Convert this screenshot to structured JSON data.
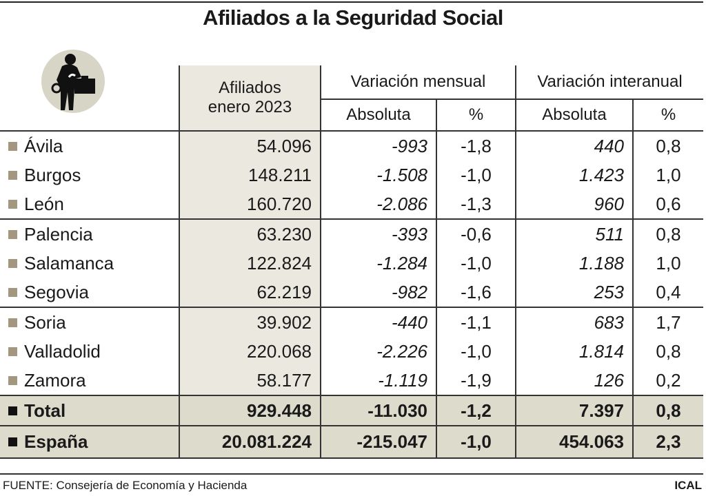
{
  "title": "Afiliados a la Seguridad Social",
  "icon": "worker-with-toolbox-icon",
  "colors": {
    "column_bg": "#ebe8df",
    "total_bg": "#dddbcc",
    "bullet": "#a39780",
    "icon_circle": "#d7d5c5"
  },
  "headers": {
    "afiliados": [
      "Afiliados",
      "enero 2023"
    ],
    "var_mensual": "Variación mensual",
    "var_interanual": "Variación interanual",
    "absoluta": "Absoluta",
    "pct": "%"
  },
  "chart_data": {
    "type": "table",
    "title": "Afiliados a la Seguridad Social",
    "columns": [
      "Afiliados enero 2023",
      "Variación mensual Absoluta",
      "Variación mensual %",
      "Variación interanual Absoluta",
      "Variación interanual %"
    ],
    "rows": [
      {
        "name": "Ávila",
        "values": [
          "54.096",
          "-993",
          "-1,8",
          "440",
          "0,8"
        ]
      },
      {
        "name": "Burgos",
        "values": [
          "148.211",
          "-1.508",
          "-1,0",
          "1.423",
          "1,0"
        ]
      },
      {
        "name": "León",
        "values": [
          "160.720",
          "-2.086",
          "-1,3",
          "960",
          "0,6"
        ]
      },
      {
        "name": "Palencia",
        "values": [
          "63.230",
          "-393",
          "-0,6",
          "511",
          "0,8"
        ]
      },
      {
        "name": "Salamanca",
        "values": [
          "122.824",
          "-1.284",
          "-1,0",
          "1.188",
          "1,0"
        ]
      },
      {
        "name": "Segovia",
        "values": [
          "62.219",
          "-982",
          "-1,6",
          "253",
          "0,4"
        ]
      },
      {
        "name": "Soria",
        "values": [
          "39.902",
          "-440",
          "-1,1",
          "683",
          "1,7"
        ]
      },
      {
        "name": "Valladolid",
        "values": [
          "220.068",
          "-2.226",
          "-1,0",
          "1.814",
          "0,8"
        ]
      },
      {
        "name": "Zamora",
        "values": [
          "58.177",
          "-1.119",
          "-1,9",
          "126",
          "0,2"
        ]
      }
    ],
    "totals": [
      {
        "name": "Total",
        "values": [
          "929.448",
          "-11.030",
          "-1,2",
          "7.397",
          "0,8"
        ]
      },
      {
        "name": "España",
        "values": [
          "20.081.224",
          "-215.047",
          "-1,0",
          "454.063",
          "2,3"
        ]
      }
    ]
  },
  "footer": {
    "source": "FUENTE: Consejería de Economía y Hacienda",
    "credit": "ICAL"
  }
}
